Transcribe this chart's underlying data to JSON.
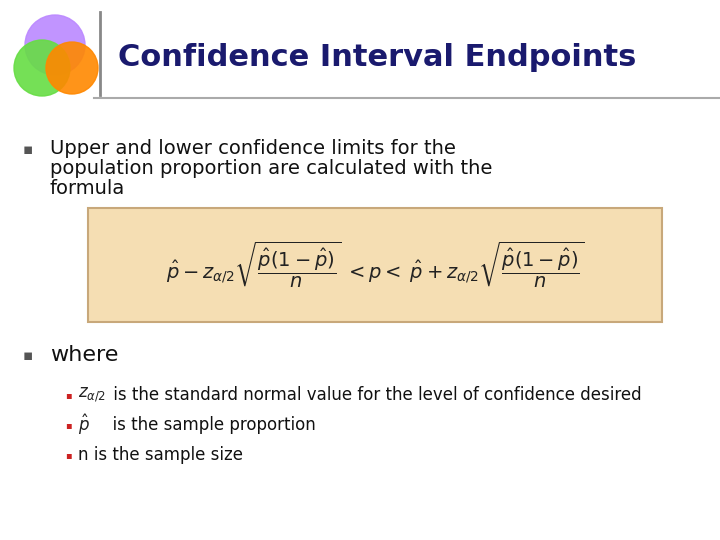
{
  "title": "Confidence Interval Endpoints",
  "title_color": "#1a1a6e",
  "title_fontsize": 22,
  "bg_color": "#ffffff",
  "bullet1_text_line1": "Upper and lower confidence limits for the",
  "bullet1_text_line2": "population proportion are calculated with the",
  "bullet1_text_line3": "formula",
  "where_text": "where",
  "sub_bullet1_math": "$z_{\\alpha/2}$",
  "sub_bullet1_rest": " is the standard normal value for the level of confidence desired",
  "sub_bullet2_math": "$\\hat{p}$",
  "sub_bullet2_rest": "  is the sample proportion",
  "sub_bullet3": "n is the sample size",
  "formula_bg": "#f5deb3",
  "formula_border": "#c8a87a",
  "circle_purple": "#bb88ff",
  "circle_green": "#66dd44",
  "circle_orange": "#ff8800",
  "circle_alpha": 0.9,
  "separator_color": "#999999",
  "bullet_color": "#555555",
  "sub_bullet_color": "#cc2222",
  "text_color": "#111111"
}
